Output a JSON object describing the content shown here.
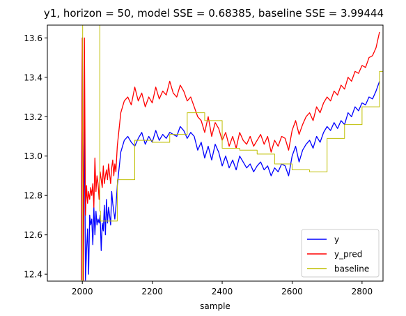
{
  "chart_data": {
    "type": "line",
    "title": "y1, horizon = 50, model SSE = 0.68385, baseline SSE = 3.99444",
    "xlabel": "sample",
    "ylabel": "",
    "xlim": [
      1900,
      2860
    ],
    "ylim": [
      12.365,
      13.665
    ],
    "x_ticks": [
      2000,
      2200,
      2400,
      2600,
      2800
    ],
    "y_ticks": [
      12.4,
      12.6,
      12.8,
      13.0,
      13.2,
      13.4,
      13.6
    ],
    "grid": false,
    "legend_position": "lower right",
    "series": [
      {
        "name": "y",
        "color": "#0000ff",
        "x": [
          1997,
          2000,
          2003,
          2006,
          2009,
          2012,
          2015,
          2018,
          2021,
          2024,
          2027,
          2030,
          2033,
          2036,
          2039,
          2042,
          2045,
          2048,
          2051,
          2054,
          2057,
          2060,
          2063,
          2066,
          2069,
          2072,
          2075,
          2078,
          2081,
          2084,
          2087,
          2090,
          2093,
          2096,
          2100,
          2110,
          2120,
          2130,
          2140,
          2150,
          2160,
          2170,
          2180,
          2190,
          2200,
          2210,
          2220,
          2230,
          2240,
          2250,
          2260,
          2270,
          2280,
          2290,
          2300,
          2310,
          2320,
          2330,
          2340,
          2350,
          2360,
          2370,
          2380,
          2390,
          2400,
          2410,
          2420,
          2430,
          2440,
          2450,
          2460,
          2470,
          2480,
          2490,
          2500,
          2510,
          2520,
          2530,
          2540,
          2550,
          2560,
          2570,
          2580,
          2590,
          2600,
          2610,
          2620,
          2630,
          2640,
          2650,
          2660,
          2670,
          2680,
          2690,
          2700,
          2710,
          2720,
          2730,
          2740,
          2750,
          2760,
          2770,
          2780,
          2790,
          2800,
          2810,
          2820,
          2830,
          2840,
          2850
        ],
        "y": [
          12.37,
          13.6,
          12.37,
          13.25,
          12.37,
          12.52,
          12.63,
          12.4,
          12.7,
          12.65,
          12.68,
          12.55,
          12.74,
          12.6,
          12.72,
          12.65,
          12.68,
          12.66,
          12.7,
          12.52,
          12.66,
          12.62,
          12.75,
          12.6,
          12.78,
          12.66,
          12.74,
          12.7,
          12.65,
          12.82,
          12.76,
          12.72,
          12.68,
          12.74,
          12.85,
          13.02,
          13.08,
          13.1,
          13.07,
          13.05,
          13.09,
          13.12,
          13.06,
          13.1,
          13.07,
          13.13,
          13.08,
          13.11,
          13.09,
          13.12,
          13.11,
          13.1,
          13.15,
          13.13,
          13.09,
          13.12,
          13.1,
          13.03,
          13.07,
          12.99,
          13.05,
          12.98,
          13.06,
          13.02,
          12.95,
          13.0,
          12.94,
          12.98,
          12.93,
          13.0,
          12.97,
          12.94,
          12.96,
          12.92,
          12.95,
          12.97,
          12.93,
          12.95,
          12.9,
          12.94,
          12.92,
          12.96,
          12.95,
          12.9,
          13.0,
          13.05,
          12.97,
          13.03,
          13.06,
          13.08,
          13.04,
          13.1,
          13.07,
          13.12,
          13.15,
          13.13,
          13.17,
          13.14,
          13.18,
          13.16,
          13.22,
          13.2,
          13.25,
          13.23,
          13.27,
          13.26,
          13.3,
          13.29,
          13.33,
          13.38
        ]
      },
      {
        "name": "y_pred",
        "color": "#ff0000",
        "x": [
          1997,
          2000,
          2003,
          2006,
          2009,
          2012,
          2015,
          2018,
          2021,
          2024,
          2027,
          2030,
          2033,
          2036,
          2039,
          2042,
          2045,
          2048,
          2051,
          2054,
          2057,
          2060,
          2063,
          2066,
          2069,
          2072,
          2075,
          2078,
          2081,
          2084,
          2087,
          2090,
          2093,
          2096,
          2100,
          2110,
          2120,
          2130,
          2140,
          2150,
          2160,
          2170,
          2180,
          2190,
          2200,
          2210,
          2220,
          2230,
          2240,
          2250,
          2260,
          2270,
          2280,
          2290,
          2300,
          2310,
          2320,
          2330,
          2340,
          2350,
          2360,
          2370,
          2380,
          2390,
          2400,
          2410,
          2420,
          2430,
          2440,
          2450,
          2460,
          2470,
          2480,
          2490,
          2500,
          2510,
          2520,
          2530,
          2540,
          2550,
          2560,
          2570,
          2580,
          2590,
          2600,
          2610,
          2620,
          2630,
          2640,
          2650,
          2660,
          2670,
          2680,
          2690,
          2700,
          2710,
          2720,
          2730,
          2740,
          2750,
          2760,
          2770,
          2780,
          2790,
          2800,
          2810,
          2820,
          2830,
          2840,
          2850
        ],
        "y": [
          12.37,
          13.6,
          12.37,
          13.6,
          12.7,
          12.85,
          12.76,
          12.82,
          12.78,
          12.84,
          12.8,
          12.86,
          12.74,
          12.99,
          12.82,
          12.9,
          12.86,
          12.78,
          12.92,
          12.88,
          12.84,
          12.95,
          12.86,
          12.9,
          12.93,
          12.88,
          12.96,
          12.91,
          12.86,
          12.94,
          12.98,
          12.9,
          12.96,
          12.92,
          13.05,
          13.22,
          13.28,
          13.3,
          13.26,
          13.35,
          13.28,
          13.32,
          13.25,
          13.3,
          13.27,
          13.35,
          13.29,
          13.33,
          13.31,
          13.38,
          13.32,
          13.3,
          13.36,
          13.33,
          13.28,
          13.3,
          13.25,
          13.2,
          13.18,
          13.12,
          13.2,
          13.1,
          13.17,
          13.14,
          13.08,
          13.12,
          13.05,
          13.1,
          13.04,
          13.12,
          13.08,
          13.06,
          13.1,
          13.05,
          13.08,
          13.11,
          13.06,
          13.1,
          13.02,
          13.08,
          13.05,
          13.1,
          13.09,
          13.03,
          13.13,
          13.18,
          13.11,
          13.16,
          13.2,
          13.22,
          13.18,
          13.25,
          13.22,
          13.27,
          13.3,
          13.28,
          13.33,
          13.31,
          13.36,
          13.34,
          13.4,
          13.38,
          13.43,
          13.42,
          13.46,
          13.45,
          13.5,
          13.51,
          13.55,
          13.63
        ]
      },
      {
        "name": "baseline",
        "color": "#bfbf00",
        "x": [
          1997,
          2001,
          2001,
          2050,
          2050,
          2052,
          2052,
          2100,
          2100,
          2150,
          2150,
          2200,
          2200,
          2250,
          2250,
          2300,
          2300,
          2350,
          2350,
          2400,
          2400,
          2450,
          2450,
          2500,
          2500,
          2550,
          2550,
          2600,
          2600,
          2650,
          2650,
          2700,
          2700,
          2750,
          2750,
          2800,
          2800,
          2850,
          2850,
          2860
        ],
        "y": [
          12.37,
          12.37,
          13.665,
          13.665,
          12.72,
          12.72,
          12.67,
          12.67,
          12.88,
          12.88,
          13.08,
          13.08,
          13.07,
          13.07,
          13.11,
          13.11,
          13.22,
          13.22,
          13.18,
          13.18,
          13.04,
          13.04,
          13.03,
          13.03,
          13.01,
          13.01,
          12.96,
          12.96,
          12.93,
          12.93,
          12.92,
          12.92,
          13.09,
          13.09,
          13.16,
          13.16,
          13.25,
          13.25,
          13.43,
          13.43
        ]
      }
    ]
  }
}
